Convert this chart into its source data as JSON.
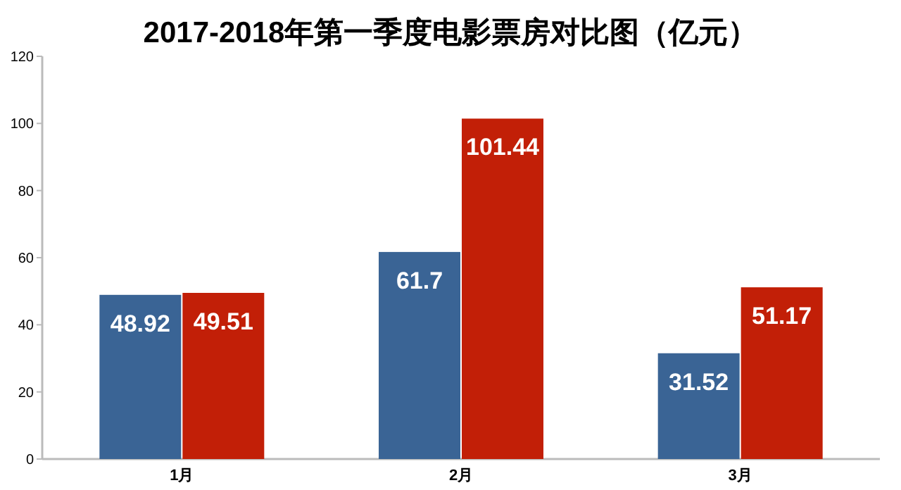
{
  "chart_data": {
    "type": "bar",
    "title": "2017-2018年第一季度电影票房对比图（亿元）",
    "categories": [
      "1月",
      "2月",
      "3月"
    ],
    "series": [
      {
        "color": "#3a6495",
        "values": [
          48.92,
          61.7,
          31.52
        ]
      },
      {
        "color": "#c21f07",
        "values": [
          49.51,
          101.44,
          51.17
        ]
      }
    ],
    "ylim": [
      0,
      120
    ],
    "yticks": [
      0,
      20,
      40,
      60,
      80,
      100,
      120
    ],
    "data_labels": true
  }
}
